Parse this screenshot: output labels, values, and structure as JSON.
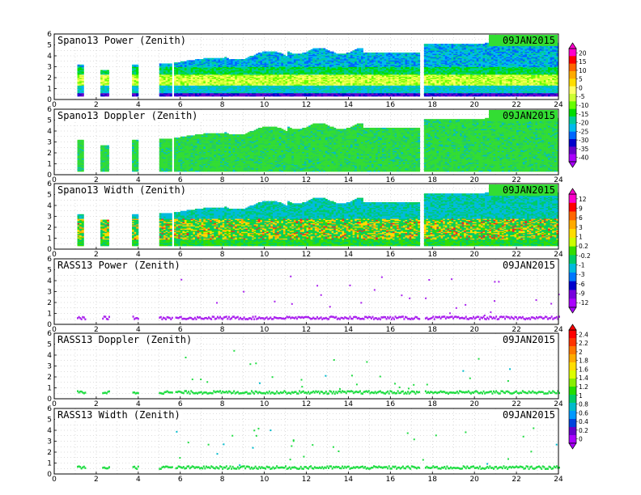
{
  "chart_data": [
    {
      "type": "heatmap",
      "title": "Spano13 Power (Zenith)",
      "date_label": "09JAN2015",
      "xlim": [
        0,
        24
      ],
      "ylim": [
        0,
        6
      ],
      "xticks": [
        "0",
        "2",
        "4",
        "6",
        "8",
        "10",
        "12",
        "14",
        "16",
        "18",
        "20",
        "22",
        "24"
      ],
      "yticks": [
        "0",
        "1",
        "2",
        "3",
        "4",
        "5",
        "6"
      ],
      "grid": true,
      "color_scale": "power",
      "colorbar_labels": [
        "20",
        "15",
        "10",
        "5",
        "0",
        "-5",
        "-10",
        "-15",
        "-20",
        "-25",
        "-30",
        "-35",
        "-40"
      ]
    },
    {
      "type": "heatmap",
      "title": "Spano13 Doppler (Zenith)",
      "date_label": "09JAN2015",
      "xlim": [
        0,
        24
      ],
      "ylim": [
        0,
        6
      ],
      "xticks": [
        "0",
        "2",
        "4",
        "6",
        "8",
        "10",
        "12",
        "14",
        "16",
        "18",
        "20",
        "22",
        "24"
      ],
      "yticks": [
        "0",
        "1",
        "2",
        "3",
        "4",
        "5",
        "6"
      ],
      "grid": true,
      "color_scale": "doppler",
      "colorbar_labels": []
    },
    {
      "type": "heatmap",
      "title": "Spano13 Width (Zenith)",
      "date_label": "09JAN2015",
      "xlim": [
        0,
        24
      ],
      "ylim": [
        0,
        6
      ],
      "xticks": [
        "0",
        "2",
        "4",
        "6",
        "8",
        "10",
        "12",
        "14",
        "16",
        "18",
        "20",
        "22",
        "24"
      ],
      "yticks": [
        "0",
        "1",
        "2",
        "3",
        "4",
        "5",
        "6"
      ],
      "grid": true,
      "color_scale": "width",
      "colorbar_labels": [
        "12",
        "9",
        "6",
        "3",
        "1",
        "0.2",
        "-0.2",
        "-1",
        "-3",
        "-6",
        "-9",
        "-12"
      ]
    },
    {
      "type": "scatter",
      "title": "RASS13 Power (Zenith)",
      "date_label": "09JAN2015",
      "xlim": [
        0,
        24
      ],
      "ylim": [
        0,
        6
      ],
      "xticks": [
        "0",
        "2",
        "4",
        "6",
        "8",
        "10",
        "12",
        "14",
        "16",
        "18",
        "20",
        "22",
        "24"
      ],
      "yticks": [
        "0",
        "1",
        "2",
        "3",
        "4",
        "5",
        "6"
      ],
      "grid": true,
      "color_scale": "rass_power",
      "colorbar_labels": []
    },
    {
      "type": "scatter",
      "title": "RASS13 Doppler (Zenith)",
      "date_label": "09JAN2015",
      "xlim": [
        0,
        24
      ],
      "ylim": [
        0,
        6
      ],
      "xticks": [
        "0",
        "2",
        "4",
        "6",
        "8",
        "10",
        "12",
        "14",
        "16",
        "18",
        "20",
        "22",
        "24"
      ],
      "yticks": [
        "0",
        "1",
        "2",
        "3",
        "4",
        "5",
        "6"
      ],
      "grid": true,
      "color_scale": "rass",
      "colorbar_labels": [
        "2.4",
        "2.2",
        "2",
        "1.8",
        "1.6",
        "1.4",
        "1.2",
        "1",
        "0.8",
        "0.6",
        "0.4",
        "0.2",
        "0"
      ]
    },
    {
      "type": "scatter",
      "title": "RASS13 Width (Zenith)",
      "date_label": "09JAN2015",
      "xlim": [
        0,
        24
      ],
      "ylim": [
        0,
        6
      ],
      "xticks": [
        "0",
        "2",
        "4",
        "6",
        "8",
        "10",
        "12",
        "14",
        "16",
        "18",
        "20",
        "22",
        "24"
      ],
      "yticks": [
        "0",
        "1",
        "2",
        "3",
        "4",
        "5",
        "6"
      ],
      "grid": true,
      "color_scale": "rass",
      "colorbar_labels": []
    }
  ],
  "colors": {
    "power": [
      "#ff00cc",
      "#ff0000",
      "#ff6600",
      "#ffaa00",
      "#ffdd00",
      "#ffff66",
      "#ccff33",
      "#66ff00",
      "#00dd00",
      "#00cc99",
      "#00bbee",
      "#0066ff",
      "#0000cc",
      "#6600cc",
      "#aa00ff"
    ],
    "width": [
      "#ff00cc",
      "#ff0000",
      "#ff6600",
      "#ffaa00",
      "#ffdd00",
      "#ccff00",
      "#33dd00",
      "#00cc66",
      "#00bbdd",
      "#0077ff",
      "#0000cc",
      "#7700dd",
      "#aa00ff"
    ],
    "rass": [
      "#ff0000",
      "#ff3300",
      "#ff7700",
      "#ffaa00",
      "#ffdd00",
      "#ddff00",
      "#88ee00",
      "#22dd00",
      "#00cc66",
      "#00bbcc",
      "#0099ff",
      "#0044dd",
      "#6600cc",
      "#aa00ff"
    ],
    "heat_low": "#00bbee",
    "heat_mid": "#33dd33",
    "heat_high": "#ffee44",
    "heat_peak": "#ff2222",
    "scatter_power": "#aa22ee",
    "scatter_main": "#22dd44"
  }
}
